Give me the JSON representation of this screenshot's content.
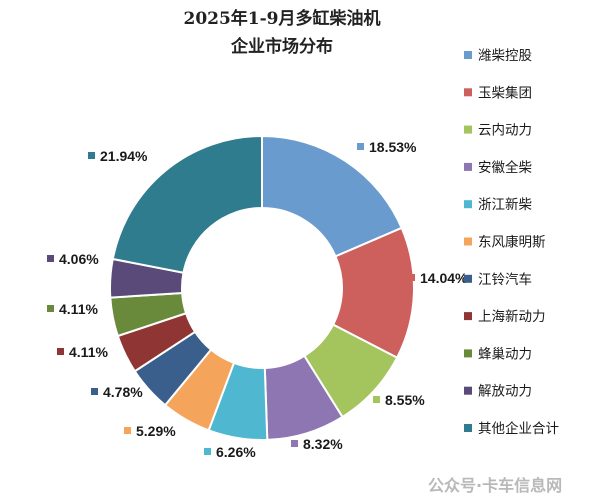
{
  "chart_data": {
    "type": "pie",
    "donut": true,
    "title": [
      "2025年1-9月多缸柴油机",
      "企业市场分布"
    ],
    "legend_position": "right",
    "series": [
      {
        "name": "潍柴控股",
        "value": 18.53,
        "label": "18.53%",
        "color": "#6a9bcf"
      },
      {
        "name": "玉柴集团",
        "value": 14.04,
        "label": "14.04%",
        "color": "#cd5f5c"
      },
      {
        "name": "云内动力",
        "value": 8.55,
        "label": "8.55%",
        "color": "#a4c45e"
      },
      {
        "name": "安徽全柴",
        "value": 8.32,
        "label": "8.32%",
        "color": "#8d76b2"
      },
      {
        "name": "浙江新柴",
        "value": 6.26,
        "label": "6.26%",
        "color": "#4fb7d0"
      },
      {
        "name": "东风康明斯",
        "value": 5.29,
        "label": "5.29%",
        "color": "#f4a55b"
      },
      {
        "name": "江铃汽车",
        "value": 4.78,
        "label": "4.78%",
        "color": "#3a5f8c"
      },
      {
        "name": "上海新动力",
        "value": 4.11,
        "label": "4.11%",
        "color": "#8f3634"
      },
      {
        "name": "蜂巢动力",
        "value": 4.11,
        "label": "4.11%",
        "color": "#6a8a3b"
      },
      {
        "name": "解放动力",
        "value": 4.06,
        "label": "4.06%",
        "color": "#5a4a7a"
      },
      {
        "name": "其他企业合计",
        "value": 21.94,
        "label": "21.94%",
        "color": "#2f7c8e"
      }
    ]
  },
  "watermark": "公众号·卡车信息网"
}
